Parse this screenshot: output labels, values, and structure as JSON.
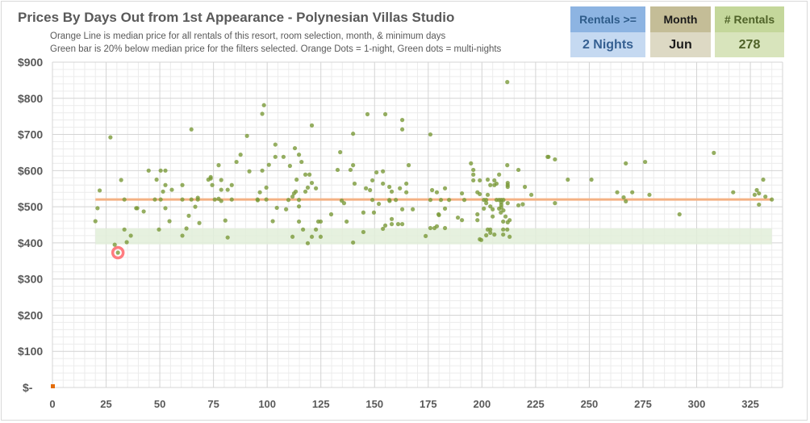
{
  "header": {
    "title": "Prices By Days Out from 1st Appearance - Polynesian Villas Studio",
    "subtitle_1": "Orange Line is median price for all rentals of this resort, room selection, month, & minimum days",
    "subtitle_2": "Green bar is 20% below median price for the filters selected. Orange Dots = 1-night, Green dots = multi-nights"
  },
  "filters": {
    "rentals_label": "Rentals >=",
    "rentals_value": "2 Nights",
    "month_label": "Month",
    "month_value": "Jun",
    "count_label": "# Rentals",
    "count_value": "278"
  },
  "colors": {
    "median_line": "#f4b183",
    "green_band": "#e2efd9",
    "multi_dot": "#7a9a3a",
    "single_dot": "#e36c09",
    "highlight": "#ff7c80"
  },
  "chart_data": {
    "type": "scatter",
    "title": "Prices By Days Out from 1st Appearance - Polynesian Villas Studio",
    "xlabel": "",
    "ylabel": "",
    "xlim": [
      0,
      340
    ],
    "ylim": [
      0,
      900
    ],
    "x_ticks": [
      "0",
      "25",
      "50",
      "75",
      "100",
      "125",
      "150",
      "175",
      "200",
      "225",
      "250",
      "275",
      "300",
      "325"
    ],
    "x_tick_values": [
      0,
      25,
      50,
      75,
      100,
      125,
      150,
      175,
      200,
      225,
      250,
      275,
      300,
      325
    ],
    "y_ticks": [
      "$-",
      "$100",
      "$200",
      "$300",
      "$400",
      "$500",
      "$600",
      "$700",
      "$800",
      "$900"
    ],
    "y_tick_values": [
      0,
      100,
      200,
      300,
      400,
      500,
      600,
      700,
      800,
      900
    ],
    "grid": true,
    "median_line": {
      "value": 520,
      "x_range": [
        20,
        335
      ]
    },
    "green_band": {
      "range": [
        396,
        440
      ],
      "x_range": [
        20,
        335
      ]
    },
    "highlighted_point": [
      30.5,
      373
    ],
    "one_night_points": [
      [
        0,
        0
      ]
    ],
    "multi_night_points": [
      [
        20,
        460
      ],
      [
        21,
        496
      ],
      [
        22,
        545
      ],
      [
        27,
        692
      ],
      [
        29,
        395
      ],
      [
        30.5,
        373
      ],
      [
        32,
        574
      ],
      [
        33.5,
        520
      ],
      [
        33.5,
        437
      ],
      [
        34.6,
        402
      ],
      [
        36.5,
        420
      ],
      [
        39,
        496
      ],
      [
        39.5,
        496
      ],
      [
        42.5,
        487
      ],
      [
        44.8,
        600
      ],
      [
        47.7,
        520
      ],
      [
        48.5,
        575
      ],
      [
        49.6,
        437
      ],
      [
        50.4,
        600
      ],
      [
        50.4,
        520
      ],
      [
        51.5,
        542
      ],
      [
        52.6,
        600
      ],
      [
        52.6,
        560
      ],
      [
        52.6,
        496
      ],
      [
        54.5,
        460
      ],
      [
        55.6,
        547
      ],
      [
        60.5,
        560
      ],
      [
        60.5,
        520
      ],
      [
        60.5,
        420
      ],
      [
        62.4,
        440
      ],
      [
        63.5,
        475
      ],
      [
        64.7,
        714
      ],
      [
        64.7,
        520
      ],
      [
        66.5,
        500
      ],
      [
        67.7,
        525
      ],
      [
        67.7,
        520
      ],
      [
        68.4,
        455
      ],
      [
        72.6,
        575
      ],
      [
        73.7,
        582
      ],
      [
        73.7,
        578
      ],
      [
        74.4,
        560
      ],
      [
        75.6,
        520
      ],
      [
        77.4,
        615
      ],
      [
        77.4,
        522
      ],
      [
        78.6,
        574
      ],
      [
        78.6,
        547
      ],
      [
        78.6,
        516
      ],
      [
        80.5,
        462
      ],
      [
        81.6,
        547
      ],
      [
        81.6,
        415
      ],
      [
        83.5,
        560
      ],
      [
        83.5,
        520
      ],
      [
        85.7,
        624
      ],
      [
        87.6,
        644
      ],
      [
        90.6,
        696
      ],
      [
        91.7,
        598
      ],
      [
        95.5,
        520
      ],
      [
        95.6,
        518
      ],
      [
        96.6,
        540
      ],
      [
        97.7,
        757
      ],
      [
        98.5,
        781
      ],
      [
        97.7,
        600
      ],
      [
        99.6,
        553
      ],
      [
        99.6,
        520
      ],
      [
        100.8,
        616
      ],
      [
        102.6,
        460
      ],
      [
        103.8,
        672
      ],
      [
        103.8,
        638
      ],
      [
        104.5,
        497
      ],
      [
        107.6,
        638
      ],
      [
        108.8,
        493
      ],
      [
        110.6,
        613
      ],
      [
        112.9,
        662
      ],
      [
        114.8,
        644
      ],
      [
        116,
        624
      ],
      [
        117.8,
        589
      ],
      [
        119.7,
        589
      ],
      [
        120.8,
        725
      ],
      [
        113.7,
        575
      ],
      [
        118.9,
        553
      ],
      [
        120.8,
        566
      ],
      [
        122.7,
        551
      ],
      [
        117.8,
        542
      ],
      [
        113.3,
        542
      ],
      [
        112.5,
        537
      ],
      [
        111.8,
        528
      ],
      [
        109.9,
        519
      ],
      [
        114.8,
        519
      ],
      [
        114.8,
        501
      ],
      [
        114.8,
        459
      ],
      [
        116.7,
        437
      ],
      [
        111.8,
        417
      ],
      [
        118.9,
        399
      ],
      [
        120.8,
        417
      ],
      [
        122.7,
        437
      ],
      [
        123.8,
        459
      ],
      [
        124.9,
        459
      ],
      [
        124.9,
        417
      ],
      [
        129.8,
        479
      ],
      [
        132.8,
        602
      ],
      [
        134,
        651
      ],
      [
        134.7,
        517
      ],
      [
        135.8,
        510
      ],
      [
        137,
        459
      ],
      [
        138.8,
        602
      ],
      [
        140,
        615
      ],
      [
        140,
        702
      ],
      [
        140.7,
        564
      ],
      [
        140,
        401
      ],
      [
        144.8,
        484
      ],
      [
        144.8,
        430
      ],
      [
        146,
        551
      ],
      [
        146.7,
        756
      ],
      [
        147.9,
        546
      ],
      [
        149,
        573
      ],
      [
        149,
        519
      ],
      [
        149.7,
        484
      ],
      [
        150.9,
        595
      ],
      [
        152,
        508
      ],
      [
        153.9,
        598
      ],
      [
        153.9,
        564
      ],
      [
        155,
        756
      ],
      [
        153.9,
        439
      ],
      [
        155,
        448
      ],
      [
        156.9,
        555
      ],
      [
        156.9,
        519
      ],
      [
        157,
        516
      ],
      [
        158,
        542
      ],
      [
        158,
        466
      ],
      [
        158,
        452
      ],
      [
        159.9,
        519
      ],
      [
        161,
        452
      ],
      [
        162.9,
        452
      ],
      [
        161.8,
        551
      ],
      [
        162.9,
        740
      ],
      [
        162.9,
        714
      ],
      [
        162.9,
        493
      ],
      [
        164.8,
        564
      ],
      [
        164.8,
        540
      ],
      [
        165.9,
        615
      ],
      [
        167.8,
        493
      ],
      [
        173.8,
        419
      ],
      [
        176,
        700
      ],
      [
        176,
        519
      ],
      [
        176.8,
        546
      ],
      [
        176,
        441
      ],
      [
        177.9,
        441
      ],
      [
        179,
        446
      ],
      [
        179,
        540
      ],
      [
        179.8,
        479
      ],
      [
        180,
        477
      ],
      [
        180.9,
        519
      ],
      [
        182.8,
        551
      ],
      [
        182.8,
        495
      ],
      [
        182.8,
        441
      ],
      [
        184.7,
        519
      ],
      [
        188.8,
        470
      ],
      [
        190.7,
        537
      ],
      [
        190.7,
        463
      ],
      [
        191.8,
        519
      ],
      [
        194.9,
        620
      ],
      [
        196,
        602
      ],
      [
        196,
        589
      ],
      [
        196,
        573
      ],
      [
        197.9,
        540
      ],
      [
        197.9,
        479
      ],
      [
        197.9,
        463
      ],
      [
        199,
        573
      ],
      [
        199,
        535
      ],
      [
        199,
        410
      ],
      [
        199.7,
        408
      ],
      [
        200.9,
        519
      ],
      [
        200.9,
        495
      ],
      [
        202,
        519
      ],
      [
        202,
        510
      ],
      [
        202.7,
        575
      ],
      [
        202.7,
        533
      ],
      [
        203.9,
        560
      ],
      [
        205.8,
        560
      ],
      [
        203.9,
        501
      ],
      [
        203.9,
        428
      ],
      [
        202.7,
        437
      ],
      [
        203.9,
        437
      ],
      [
        202,
        421
      ],
      [
        205,
        493
      ],
      [
        205,
        473
      ],
      [
        205.8,
        573
      ],
      [
        205.8,
        423
      ],
      [
        206.8,
        564
      ],
      [
        208,
        589
      ],
      [
        206.8,
        519
      ],
      [
        208,
        519
      ],
      [
        209,
        519
      ],
      [
        210,
        519
      ],
      [
        209,
        512
      ],
      [
        209,
        505
      ],
      [
        209,
        498
      ],
      [
        210,
        490
      ],
      [
        208,
        495
      ],
      [
        208.8,
        484
      ],
      [
        209.9,
        459
      ],
      [
        212,
        457
      ],
      [
        212,
        555
      ],
      [
        212,
        560
      ],
      [
        212,
        566
      ],
      [
        212,
        510
      ],
      [
        211,
        473
      ],
      [
        209.9,
        437
      ],
      [
        211.8,
        437
      ],
      [
        209.9,
        423
      ],
      [
        212.9,
        463
      ],
      [
        212.9,
        417
      ],
      [
        211.8,
        615
      ],
      [
        211.8,
        845
      ],
      [
        217,
        602
      ],
      [
        217,
        504
      ],
      [
        219,
        507
      ],
      [
        220,
        555
      ],
      [
        223,
        533
      ],
      [
        230.6,
        638
      ],
      [
        231,
        638
      ],
      [
        234,
        631
      ],
      [
        234,
        510
      ],
      [
        240,
        575
      ],
      [
        251,
        575
      ],
      [
        263,
        540
      ],
      [
        266,
        526
      ],
      [
        267,
        515
      ],
      [
        267,
        620
      ],
      [
        270,
        540
      ],
      [
        276,
        624
      ],
      [
        278,
        533
      ],
      [
        292,
        479
      ],
      [
        308,
        649
      ],
      [
        317,
        540
      ],
      [
        327,
        533
      ],
      [
        328,
        546
      ],
      [
        329,
        537
      ],
      [
        331,
        575
      ],
      [
        332,
        528
      ],
      [
        329,
        506
      ],
      [
        335,
        520
      ]
    ]
  }
}
